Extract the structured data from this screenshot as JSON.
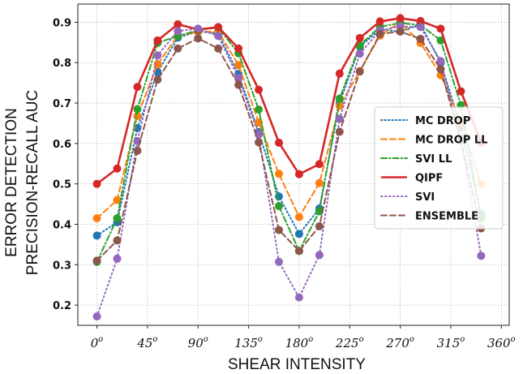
{
  "chart_data": {
    "type": "line",
    "title": "",
    "xlabel": "SHEAR  INTENSITY",
    "ylabel_lines": [
      "ERROR  DETECTION",
      "PRECISION-RECALL  AUC"
    ],
    "xlim": [
      -17,
      367
    ],
    "ylim": [
      0.15,
      0.945
    ],
    "x_ticks": [
      {
        "value": 0,
        "text": "0",
        "sup": "o"
      },
      {
        "value": 45,
        "text": "45",
        "sup": "o"
      },
      {
        "value": 90,
        "text": "90",
        "sup": "o"
      },
      {
        "value": 135,
        "text": "135",
        "sup": "o"
      },
      {
        "value": 180,
        "text": "180",
        "sup": "o"
      },
      {
        "value": 225,
        "text": "225",
        "sup": "o"
      },
      {
        "value": 270,
        "text": "270",
        "sup": "o"
      },
      {
        "value": 315,
        "text": "315",
        "sup": "o"
      },
      {
        "value": 360,
        "text": "360",
        "sup": "o"
      }
    ],
    "y_ticks": [
      0.2,
      0.3,
      0.4,
      0.5,
      0.6,
      0.7,
      0.8,
      0.9
    ],
    "x": [
      0,
      18,
      36,
      54,
      72,
      90,
      108,
      126,
      144,
      162,
      180,
      198,
      216,
      234,
      252,
      270,
      288,
      306,
      324,
      342
    ],
    "grid": true,
    "legend_position": "center-right",
    "series": [
      {
        "name": "MC DROP",
        "color": "#1f77b4",
        "dash": "1.5,3",
        "values": [
          0.372,
          0.405,
          0.638,
          0.777,
          0.862,
          0.877,
          0.872,
          0.772,
          0.628,
          0.469,
          0.376,
          0.439,
          0.7,
          0.84,
          0.882,
          0.877,
          0.895,
          0.8,
          0.64,
          0.425
        ]
      },
      {
        "name": "MC DROP LL",
        "color": "#ff7f0e",
        "dash": "7,4",
        "values": [
          0.415,
          0.46,
          0.668,
          0.796,
          0.867,
          0.876,
          0.877,
          0.794,
          0.652,
          0.525,
          0.418,
          0.502,
          0.693,
          0.779,
          0.867,
          0.9,
          0.849,
          0.769,
          0.653,
          0.499
        ]
      },
      {
        "name": "SVI LL",
        "color": "#2ca02c",
        "dash": "7,3,1.5,3",
        "values": [
          0.307,
          0.415,
          0.685,
          0.849,
          0.866,
          0.88,
          0.887,
          0.823,
          0.684,
          0.445,
          0.334,
          0.432,
          0.711,
          0.843,
          0.889,
          0.898,
          0.893,
          0.855,
          0.695,
          0.415
        ]
      },
      {
        "name": "QIPF",
        "color": "#d62728",
        "dash": "",
        "values": [
          0.5,
          0.538,
          0.74,
          0.855,
          0.895,
          0.882,
          0.888,
          0.835,
          0.733,
          0.602,
          0.524,
          0.549,
          0.773,
          0.861,
          0.902,
          0.91,
          0.903,
          0.884,
          0.729,
          0.602
        ]
      },
      {
        "name": "SVI",
        "color": "#9467bd",
        "dash": "1.5,3.5",
        "values": [
          0.172,
          0.315,
          0.606,
          0.818,
          0.878,
          0.884,
          0.866,
          0.762,
          0.622,
          0.307,
          0.219,
          0.324,
          0.661,
          0.822,
          0.88,
          0.89,
          0.888,
          0.804,
          0.608,
          0.322
        ]
      },
      {
        "name": "ENSEMBLE",
        "color": "#8c564b",
        "dash": "7,4",
        "values": [
          0.31,
          0.36,
          0.582,
          0.758,
          0.835,
          0.86,
          0.835,
          0.745,
          0.603,
          0.386,
          0.334,
          0.395,
          0.629,
          0.778,
          0.871,
          0.877,
          0.859,
          0.784,
          0.606,
          0.39
        ]
      }
    ]
  }
}
